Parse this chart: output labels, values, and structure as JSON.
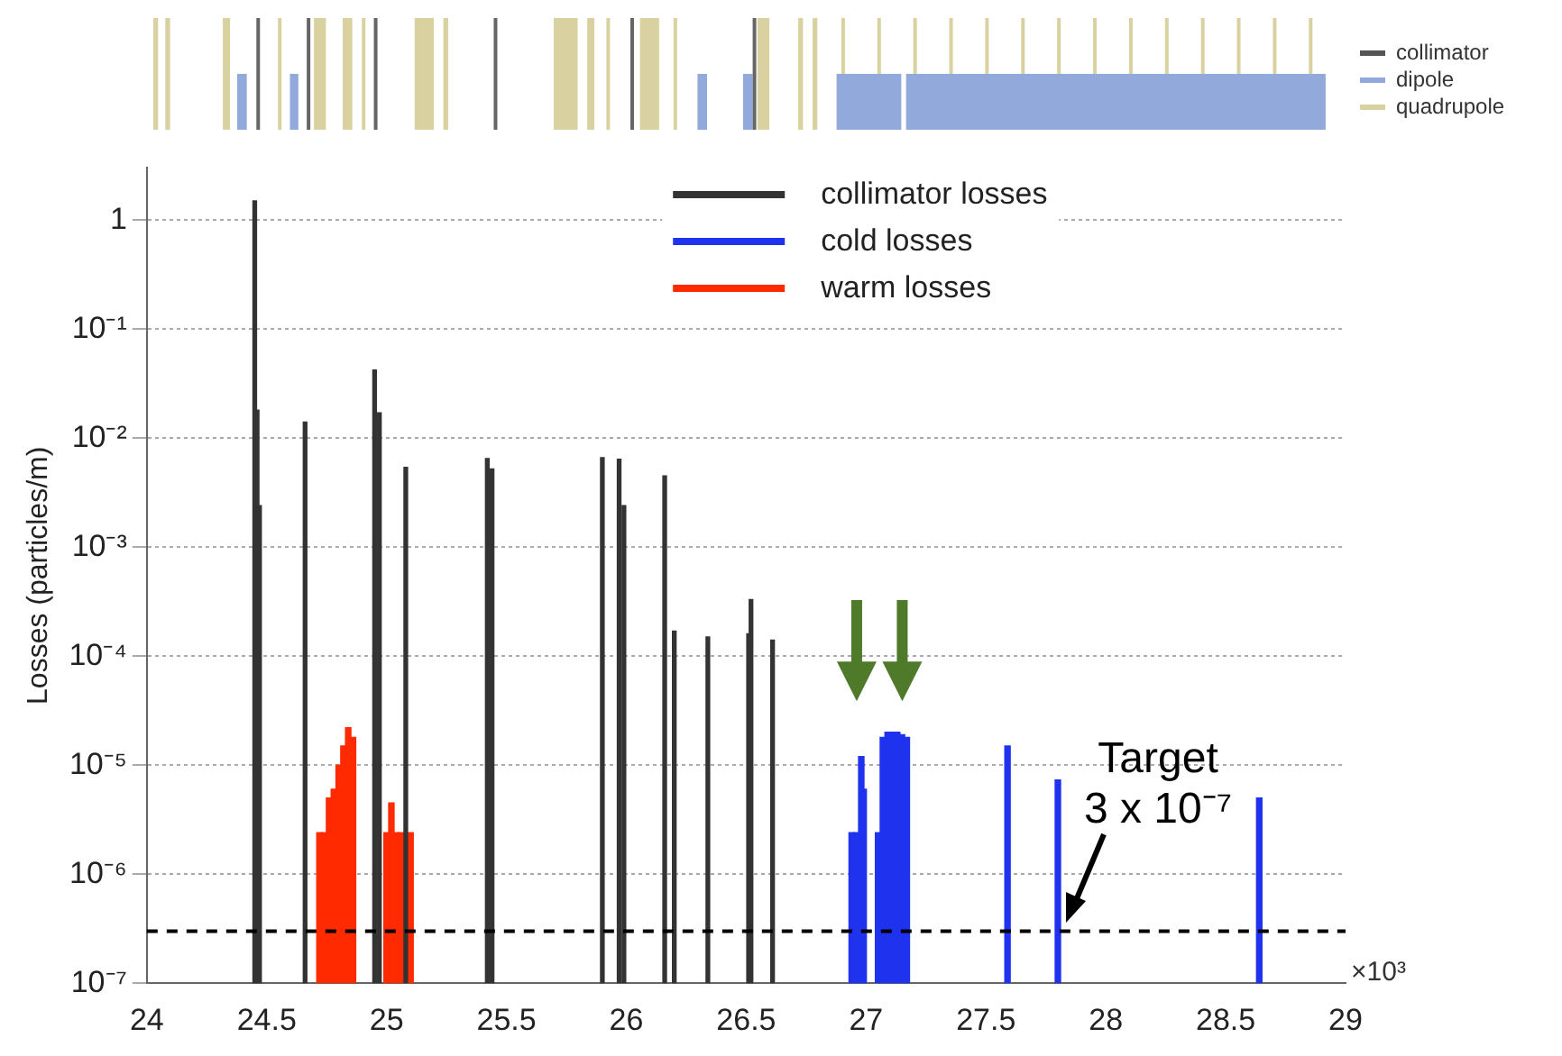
{
  "chart_data": {
    "type": "bar",
    "ylabel": "Losses (particles/m)",
    "series": [
      {
        "name": "collimator losses",
        "color": "#333333",
        "x": [
          24.45,
          24.46,
          24.47,
          24.66,
          24.95,
          24.97,
          25.08,
          25.42,
          25.44,
          25.9,
          25.97,
          25.99,
          26.16,
          26.2,
          26.34,
          26.51,
          26.52,
          26.61
        ],
        "values": [
          1.5,
          0.018,
          0.0024,
          0.014,
          0.042,
          0.017,
          0.0054,
          0.0065,
          0.0052,
          0.0066,
          0.0064,
          0.0024,
          0.0045,
          0.00017,
          0.00015,
          0.00016,
          0.00033,
          0.00014
        ]
      },
      {
        "name": "cold losses",
        "color": "#1f33ee",
        "x": [
          26.94,
          26.96,
          26.98,
          26.99,
          27.05,
          27.07,
          27.09,
          27.11,
          27.13,
          27.15,
          27.17,
          27.59,
          27.8,
          28.64
        ],
        "values": [
          2.4e-06,
          2.4e-06,
          1.2e-05,
          6e-06,
          2.4e-06,
          1.8e-05,
          2e-05,
          2e-05,
          2e-05,
          1.9e-05,
          1.8e-05,
          1.5e-05,
          7.3e-06,
          5e-06
        ]
      },
      {
        "name": "warm losses",
        "color": "#ff2a00",
        "x": [
          24.72,
          24.74,
          24.76,
          24.78,
          24.8,
          24.82,
          24.84,
          24.86,
          25.0,
          25.02,
          25.04,
          25.06,
          25.1
        ],
        "values": [
          2.4e-06,
          2.4e-06,
          5e-06,
          6e-06,
          1e-05,
          1.5e-05,
          2.2e-05,
          1.8e-05,
          2.4e-06,
          4.5e-06,
          2.4e-06,
          2.4e-06,
          2.4e-06
        ]
      }
    ],
    "xlim": [
      24,
      29
    ],
    "xticks": [
      24,
      24.5,
      25,
      25.5,
      26,
      26.5,
      27,
      27.5,
      28,
      28.5,
      29
    ],
    "ylim": [
      1e-07,
      3
    ],
    "yticks": [
      {
        "value": 1e-07,
        "label": "10⁻⁷"
      },
      {
        "value": 1e-06,
        "label": "10⁻⁶"
      },
      {
        "value": 1e-05,
        "label": "10⁻⁵"
      },
      {
        "value": 0.0001,
        "label": "10⁻⁴"
      },
      {
        "value": 0.001,
        "label": "10⁻³"
      },
      {
        "value": 0.01,
        "label": "10⁻²"
      },
      {
        "value": 0.1,
        "label": "10⁻¹"
      },
      1
    ],
    "log": "y",
    "grid": "y",
    "legend": "top",
    "ref_lines": [
      {
        "axis": "y",
        "value": 3e-07,
        "label": "Target 3 x 10⁻⁷",
        "color": "#000000",
        "line_style": "dashed"
      }
    ],
    "annotations": [
      "×10³",
      "collimator",
      "dipole",
      "quadrupole"
    ]
  }
}
